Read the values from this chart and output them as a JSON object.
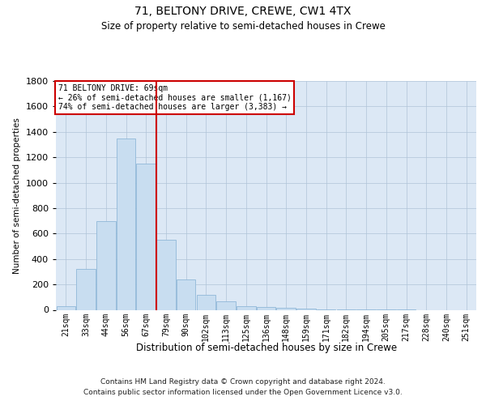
{
  "title": "71, BELTONY DRIVE, CREWE, CW1 4TX",
  "subtitle": "Size of property relative to semi-detached houses in Crewe",
  "xlabel": "Distribution of semi-detached houses by size in Crewe",
  "ylabel": "Number of semi-detached properties",
  "annotation_line1": "71 BELTONY DRIVE: 69sqm",
  "annotation_line2": "← 26% of semi-detached houses are smaller (1,167)",
  "annotation_line3": "74% of semi-detached houses are larger (3,383) →",
  "footer_line1": "Contains HM Land Registry data © Crown copyright and database right 2024.",
  "footer_line2": "Contains public sector information licensed under the Open Government Licence v3.0.",
  "categories": [
    "21sqm",
    "33sqm",
    "44sqm",
    "56sqm",
    "67sqm",
    "79sqm",
    "90sqm",
    "102sqm",
    "113sqm",
    "125sqm",
    "136sqm",
    "148sqm",
    "159sqm",
    "171sqm",
    "182sqm",
    "194sqm",
    "205sqm",
    "217sqm",
    "228sqm",
    "240sqm",
    "251sqm"
  ],
  "values": [
    30,
    320,
    700,
    1350,
    1150,
    550,
    240,
    120,
    65,
    30,
    20,
    15,
    8,
    4,
    3,
    2,
    1,
    1,
    0,
    0,
    0
  ],
  "bar_color": "#c8ddf0",
  "bar_edge_color": "#90b8d8",
  "vline_color": "#cc0000",
  "annotation_box_edge": "#cc0000",
  "plot_bg_color": "#dce8f5",
  "background_color": "#ffffff",
  "grid_color": "#b0c4d8",
  "ylim": [
    0,
    1800
  ],
  "yticks": [
    0,
    200,
    400,
    600,
    800,
    1000,
    1200,
    1400,
    1600,
    1800
  ],
  "vline_x": 4.5,
  "fig_width": 6.0,
  "fig_height": 5.0,
  "dpi": 100
}
